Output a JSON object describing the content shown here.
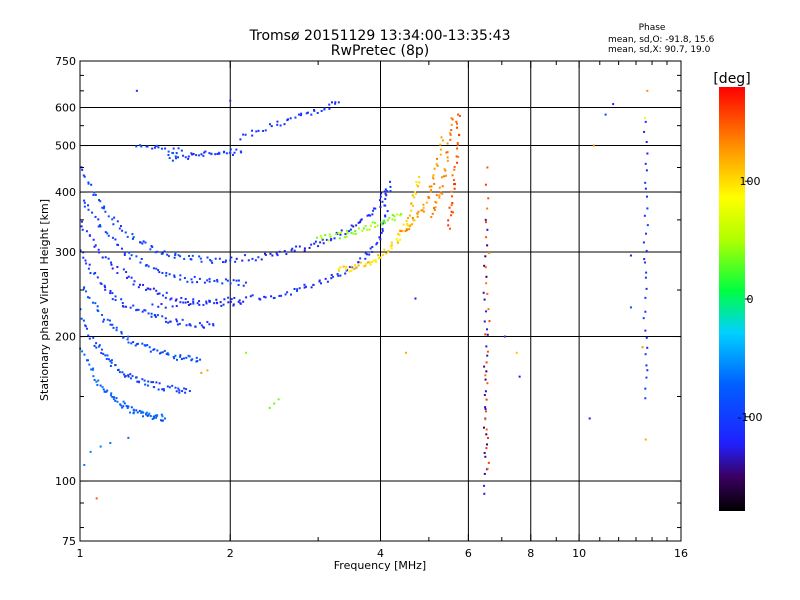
{
  "chart_data": {
    "type": "scatter",
    "title": "Tromsø 20151129 13:34:00-13:35:43",
    "subtitle": "RwPretec (8p)",
    "xlabel": "Frequency [MHz]",
    "ylabel": "Stationary phase Virtual Height [km]",
    "x_scale": "log",
    "y_scale": "log",
    "xlim": [
      1,
      16
    ],
    "ylim": [
      75,
      750
    ],
    "x_ticks": [
      1,
      2,
      4,
      6,
      8,
      10,
      16
    ],
    "x_tick_labels": [
      "1",
      "2",
      "4",
      "6",
      "8",
      "10",
      "16"
    ],
    "y_ticks": [
      75,
      100,
      200,
      300,
      400,
      500,
      600,
      750
    ],
    "y_tick_labels": [
      "75",
      "100",
      "200",
      "300",
      "400",
      "500",
      "600",
      "750"
    ],
    "grid": true,
    "phase_info": {
      "title": "Phase",
      "line_o": "mean, sd,O: -91.8, 15.6",
      "line_x": "mean, sd,X: 90.7, 19.0"
    },
    "colorbar": {
      "label": "[deg]",
      "range": [
        -180,
        180
      ],
      "ticks": [
        100,
        0,
        -100
      ],
      "tick_labels": [
        "100",
        "0",
        "-100"
      ]
    },
    "traces": [
      {
        "f": [
          1.0,
          1.04,
          1.08,
          1.12,
          1.16,
          1.2,
          1.24,
          1.28,
          1.32,
          1.36,
          1.4,
          1.44,
          1.48
        ],
        "h": [
          190,
          175,
          162,
          155,
          150,
          146,
          142,
          140,
          138,
          137,
          136,
          136,
          135
        ],
        "phase": -75
      },
      {
        "f": [
          1.0,
          1.04,
          1.08,
          1.12,
          1.16,
          1.2,
          1.25,
          1.3,
          1.36,
          1.42,
          1.5,
          1.58,
          1.66
        ],
        "h": [
          225,
          205,
          192,
          182,
          175,
          170,
          166,
          163,
          160,
          158,
          156,
          155,
          154
        ],
        "phase": -95
      },
      {
        "f": [
          1.0,
          1.05,
          1.1,
          1.16,
          1.22,
          1.28,
          1.35,
          1.42,
          1.5,
          1.58,
          1.66,
          1.74
        ],
        "h": [
          262,
          238,
          222,
          210,
          201,
          195,
          190,
          186,
          183,
          181,
          180,
          179
        ],
        "phase": -85
      },
      {
        "f": [
          1.0,
          1.05,
          1.1,
          1.16,
          1.22,
          1.3,
          1.38,
          1.46,
          1.55,
          1.65,
          1.75,
          1.85
        ],
        "h": [
          300,
          276,
          258,
          244,
          235,
          228,
          222,
          218,
          215,
          213,
          212,
          211
        ],
        "phase": -105
      },
      {
        "f": [
          1.0,
          1.06,
          1.12,
          1.2,
          1.28,
          1.36,
          1.45,
          1.55,
          1.65,
          1.8,
          1.95,
          2.1
        ],
        "h": [
          345,
          315,
          292,
          275,
          262,
          252,
          245,
          240,
          237,
          235,
          234,
          234
        ],
        "phase": -115
      },
      {
        "f": [
          1.0,
          1.06,
          1.12,
          1.2,
          1.28,
          1.38,
          1.48,
          1.6,
          1.72,
          1.85,
          2.0,
          2.15
        ],
        "h": [
          395,
          358,
          330,
          308,
          292,
          280,
          271,
          265,
          262,
          260,
          259,
          259
        ],
        "phase": -100
      },
      {
        "f": [
          1.0,
          1.05,
          1.1,
          1.16,
          1.24,
          1.32,
          1.4,
          1.5,
          1.6,
          1.72,
          1.85,
          2.0
        ],
        "h": [
          450,
          410,
          375,
          350,
          330,
          315,
          305,
          297,
          292,
          290,
          289,
          288
        ],
        "phase": -95
      },
      {
        "f": [
          1.4,
          1.6,
          1.8,
          2.0,
          2.2,
          2.4,
          2.6,
          2.8,
          3.0,
          3.2,
          3.4,
          3.6,
          3.8,
          3.95,
          4.05,
          4.12,
          4.18
        ],
        "h": [
          232,
          234,
          236,
          238,
          240,
          243,
          247,
          252,
          258,
          265,
          273,
          283,
          298,
          318,
          345,
          380,
          420
        ],
        "phase": -112
      },
      {
        "f": [
          2.0,
          2.2,
          2.4,
          2.6,
          2.8,
          3.0,
          3.2,
          3.4,
          3.6,
          3.8,
          4.0,
          4.1
        ],
        "h": [
          290,
          292,
          295,
          300,
          306,
          313,
          321,
          330,
          342,
          358,
          380,
          405
        ],
        "phase": -118
      },
      {
        "f": [
          3.3,
          3.45,
          3.6,
          3.75,
          3.9,
          4.05,
          4.2,
          4.35,
          4.5,
          4.6,
          4.7,
          4.78
        ],
        "h": [
          275,
          277,
          280,
          284,
          290,
          298,
          308,
          322,
          342,
          365,
          395,
          430
        ],
        "phase": 105
      },
      {
        "f": [
          4.4,
          4.55,
          4.7,
          4.85,
          5.0,
          5.1,
          5.2,
          5.3
        ],
        "h": [
          330,
          340,
          352,
          368,
          390,
          420,
          460,
          520
        ],
        "phase": 125
      },
      {
        "f": [
          5.1,
          5.2,
          5.3,
          5.4,
          5.5,
          5.55
        ],
        "h": [
          360,
          380,
          410,
          450,
          510,
          570
        ],
        "phase": 135
      },
      {
        "f": [
          5.5,
          5.55,
          5.6,
          5.65,
          5.7,
          5.72
        ],
        "h": [
          340,
          370,
          410,
          460,
          520,
          580
        ],
        "phase": 150
      },
      {
        "f": [
          1.5,
          1.6,
          1.7,
          1.8,
          1.9,
          2.0,
          2.1
        ],
        "h": [
          470,
          475,
          478,
          480,
          482,
          484,
          486
        ],
        "phase": -100
      },
      {
        "f": [
          2.1,
          2.3,
          2.5,
          2.7,
          2.9,
          3.1,
          3.3
        ],
        "h": [
          520,
          540,
          555,
          570,
          585,
          600,
          615
        ],
        "phase": -105
      },
      {
        "f": [
          3.0,
          3.2,
          3.4,
          3.6,
          3.8,
          4.0,
          4.2,
          4.4
        ],
        "h": [
          320,
          323,
          327,
          332,
          338,
          345,
          352,
          360
        ],
        "phase": 40
      },
      {
        "f": [
          1.3,
          1.4,
          1.5,
          1.6
        ],
        "h": [
          500,
          495,
          490,
          488
        ],
        "phase": -90
      },
      {
        "f": [
          6.5,
          6.5,
          6.5,
          6.5,
          6.5,
          6.5
        ],
        "h": [
          95,
          120,
          150,
          190,
          250,
          350
        ],
        "phase": -140
      },
      {
        "f": [
          6.55,
          6.55,
          6.55,
          6.55,
          6.55
        ],
        "h": [
          105,
          140,
          200,
          300,
          450
        ],
        "phase": 150
      },
      {
        "f": [
          13.6,
          13.6,
          13.6,
          13.6,
          13.6,
          13.6
        ],
        "h": [
          150,
          190,
          250,
          330,
          420,
          560
        ],
        "phase": -110
      }
    ],
    "scatter_points": [
      {
        "x": 1.05,
        "y": 115,
        "phase": -60
      },
      {
        "x": 1.1,
        "y": 118,
        "phase": -60
      },
      {
        "x": 1.15,
        "y": 120,
        "phase": -65
      },
      {
        "x": 1.25,
        "y": 123,
        "phase": -70
      },
      {
        "x": 1.02,
        "y": 108,
        "phase": -60
      },
      {
        "x": 1.08,
        "y": 92,
        "phase": 150
      },
      {
        "x": 1.3,
        "y": 650,
        "phase": -110
      },
      {
        "x": 2.0,
        "y": 620,
        "phase": -115
      },
      {
        "x": 2.45,
        "y": 145,
        "phase": 30
      },
      {
        "x": 2.5,
        "y": 148,
        "phase": 35
      },
      {
        "x": 2.4,
        "y": 142,
        "phase": 30
      },
      {
        "x": 2.15,
        "y": 185,
        "phase": 40
      },
      {
        "x": 1.8,
        "y": 170,
        "phase": 120
      },
      {
        "x": 1.75,
        "y": 168,
        "phase": 125
      },
      {
        "x": 4.7,
        "y": 240,
        "phase": -130
      },
      {
        "x": 4.5,
        "y": 185,
        "phase": 120
      },
      {
        "x": 7.1,
        "y": 200,
        "phase": -110
      },
      {
        "x": 7.5,
        "y": 185,
        "phase": 110
      },
      {
        "x": 7.6,
        "y": 165,
        "phase": -130
      },
      {
        "x": 10.7,
        "y": 500,
        "phase": 130
      },
      {
        "x": 11.7,
        "y": 610,
        "phase": -120
      },
      {
        "x": 11.3,
        "y": 580,
        "phase": -100
      },
      {
        "x": 12.7,
        "y": 295,
        "phase": -130
      },
      {
        "x": 12.7,
        "y": 230,
        "phase": -85
      },
      {
        "x": 10.5,
        "y": 135,
        "phase": -130
      },
      {
        "x": 13.4,
        "y": 190,
        "phase": 130
      },
      {
        "x": 13.5,
        "y": 290,
        "phase": -120
      },
      {
        "x": 13.7,
        "y": 650,
        "phase": 130
      },
      {
        "x": 13.55,
        "y": 570,
        "phase": 80
      },
      {
        "x": 13.6,
        "y": 122,
        "phase": 120
      }
    ]
  }
}
